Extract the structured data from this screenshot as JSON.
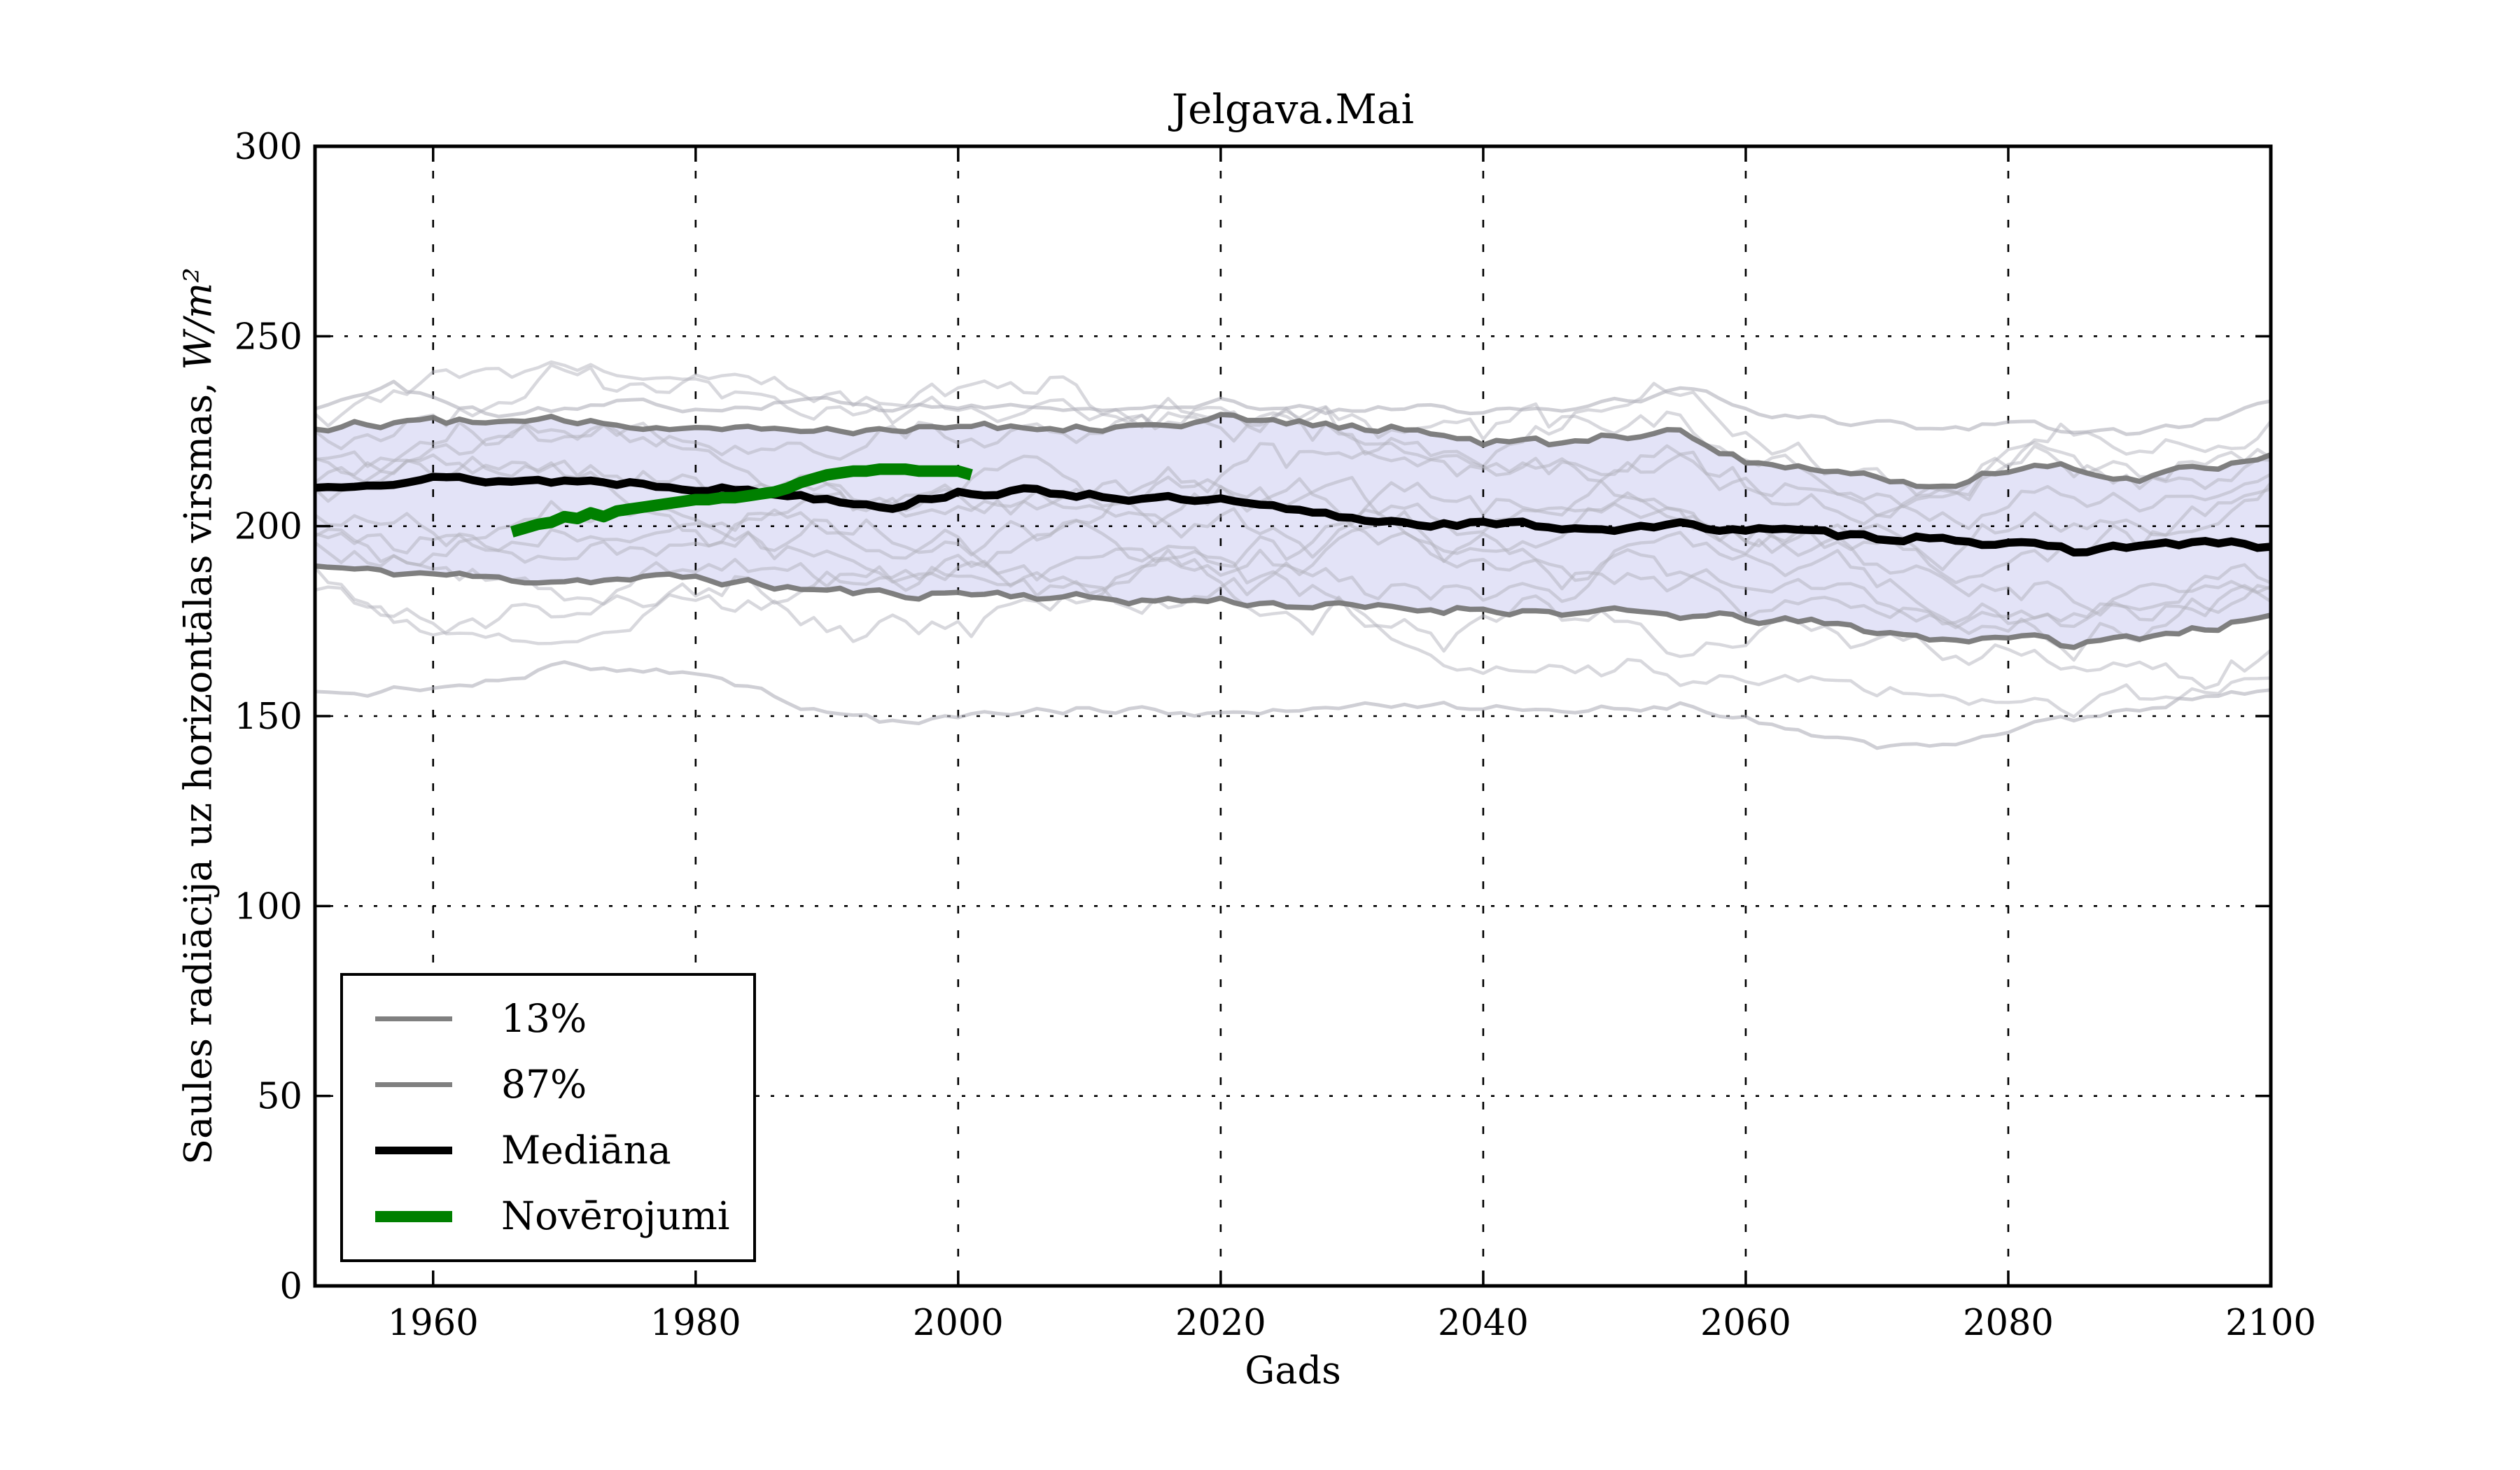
{
  "chart_data": {
    "type": "line",
    "title": "Jelgava.Mai",
    "xlabel": "Gads",
    "ylabel": "Saules radiācija uz horizontālas virsmas, W/m²",
    "ylabel_parts": {
      "prefix": "Saules radiācija uz horizontālas virsmas, ",
      "math": "W/m²"
    },
    "xlim": [
      1951,
      2100
    ],
    "ylim": [
      0,
      300
    ],
    "xticks": [
      1960,
      1980,
      2000,
      2020,
      2040,
      2060,
      2080,
      2100
    ],
    "yticks": [
      0,
      50,
      100,
      150,
      200,
      250,
      300
    ],
    "grid": "dotted",
    "legend": {
      "position": "lower left",
      "entries": [
        {
          "label": "13%",
          "color": "#808080",
          "line_width": 7
        },
        {
          "label": "87%",
          "color": "#808080",
          "line_width": 7
        },
        {
          "label": "Mediāna",
          "color": "#000000",
          "line_width": 11
        },
        {
          "label": "Novērojumi",
          "color": "#008000",
          "line_width": 16
        }
      ]
    },
    "colors": {
      "band_fill": "#e3e3f7",
      "band_edge": "#787878",
      "ensemble": "#b2b2bc",
      "median": "#000000",
      "observations": "#008000",
      "grid": "#000000",
      "frame": "#000000"
    },
    "series": {
      "p13": {
        "name": "13%",
        "points": [
          [
            1951,
            189.5
          ],
          [
            1955,
            188
          ],
          [
            1960,
            187.5
          ],
          [
            1965,
            186
          ],
          [
            1970,
            186
          ],
          [
            1975,
            186
          ],
          [
            1980,
            186.5
          ],
          [
            1985,
            184.5
          ],
          [
            1990,
            183
          ],
          [
            1995,
            182
          ],
          [
            2000,
            182.5
          ],
          [
            2005,
            182
          ],
          [
            2010,
            181
          ],
          [
            2015,
            180.5
          ],
          [
            2020,
            180.5
          ],
          [
            2025,
            179.5
          ],
          [
            2030,
            178.5
          ],
          [
            2035,
            178
          ],
          [
            2040,
            178.5
          ],
          [
            2045,
            177.5
          ],
          [
            2050,
            177
          ],
          [
            2055,
            176.5
          ],
          [
            2060,
            175.5
          ],
          [
            2065,
            174.5
          ],
          [
            2070,
            172.5
          ],
          [
            2075,
            170
          ],
          [
            2080,
            171.5
          ],
          [
            2085,
            168.5
          ],
          [
            2090,
            171
          ],
          [
            2095,
            173.5
          ],
          [
            2100,
            175.5
          ]
        ]
      },
      "p87": {
        "name": "87%",
        "points": [
          [
            1951,
            226
          ],
          [
            1955,
            227
          ],
          [
            1960,
            228
          ],
          [
            1965,
            227
          ],
          [
            1970,
            227.5
          ],
          [
            1975,
            226.5
          ],
          [
            1980,
            227
          ],
          [
            1985,
            226
          ],
          [
            1990,
            225.5
          ],
          [
            1995,
            226
          ],
          [
            2000,
            227
          ],
          [
            2005,
            226
          ],
          [
            2010,
            226.5
          ],
          [
            2015,
            227
          ],
          [
            2020,
            228.5
          ],
          [
            2025,
            227
          ],
          [
            2030,
            226
          ],
          [
            2035,
            225.5
          ],
          [
            2040,
            222
          ],
          [
            2045,
            221.5
          ],
          [
            2050,
            224
          ],
          [
            2055,
            225
          ],
          [
            2060,
            217.5
          ],
          [
            2065,
            215.5
          ],
          [
            2070,
            213
          ],
          [
            2075,
            210.5
          ],
          [
            2080,
            215
          ],
          [
            2085,
            215.5
          ],
          [
            2090,
            213
          ],
          [
            2095,
            216
          ],
          [
            2100,
            218.5
          ]
        ]
      },
      "median": {
        "name": "Mediāna",
        "points": [
          [
            1951,
            210
          ],
          [
            1955,
            212
          ],
          [
            1960,
            212.5
          ],
          [
            1965,
            212
          ],
          [
            1970,
            212
          ],
          [
            1975,
            211.5
          ],
          [
            1980,
            210.5
          ],
          [
            1985,
            209
          ],
          [
            1990,
            207.5
          ],
          [
            1995,
            205.5
          ],
          [
            2000,
            209
          ],
          [
            2005,
            209
          ],
          [
            2010,
            208.5
          ],
          [
            2015,
            207
          ],
          [
            2020,
            206.5
          ],
          [
            2025,
            204
          ],
          [
            2030,
            202
          ],
          [
            2035,
            201
          ],
          [
            2040,
            200.5
          ],
          [
            2045,
            200
          ],
          [
            2050,
            199.5
          ],
          [
            2055,
            200
          ],
          [
            2060,
            199.5
          ],
          [
            2065,
            198
          ],
          [
            2070,
            197
          ],
          [
            2075,
            197.5
          ],
          [
            2080,
            195
          ],
          [
            2085,
            193.5
          ],
          [
            2090,
            195
          ],
          [
            2095,
            195.5
          ],
          [
            2100,
            194.5
          ]
        ]
      },
      "observations": {
        "name": "Novērojumi",
        "points": [
          [
            1966,
            198.5
          ],
          [
            1967,
            199.5
          ],
          [
            1968,
            200.5
          ],
          [
            1969,
            201
          ],
          [
            1970,
            202.5
          ],
          [
            1971,
            202
          ],
          [
            1972,
            203.5
          ],
          [
            1973,
            202.5
          ],
          [
            1974,
            204
          ],
          [
            1975,
            204.5
          ],
          [
            1976,
            205
          ],
          [
            1977,
            205.5
          ],
          [
            1978,
            206
          ],
          [
            1979,
            206.5
          ],
          [
            1980,
            207
          ],
          [
            1981,
            207
          ],
          [
            1982,
            207.5
          ],
          [
            1983,
            207.5
          ],
          [
            1984,
            208
          ],
          [
            1985,
            208.5
          ],
          [
            1986,
            209
          ],
          [
            1987,
            210
          ],
          [
            1988,
            211.5
          ],
          [
            1989,
            212.5
          ],
          [
            1990,
            213.5
          ],
          [
            1991,
            214
          ],
          [
            1992,
            214.5
          ],
          [
            1993,
            214.5
          ],
          [
            1994,
            215
          ],
          [
            1995,
            215
          ],
          [
            1996,
            215
          ],
          [
            1997,
            214.5
          ],
          [
            1998,
            214.5
          ],
          [
            1999,
            214.5
          ],
          [
            2000,
            214.5
          ],
          [
            2001,
            213.5
          ]
        ]
      },
      "ensemble_outer_high": {
        "name": "ensemble member (upper)",
        "points": [
          [
            1951,
            231
          ],
          [
            1954,
            234.5
          ],
          [
            1957,
            238
          ],
          [
            1960,
            233
          ],
          [
            1965,
            230
          ],
          [
            1970,
            231
          ],
          [
            1975,
            232.5
          ],
          [
            1980,
            231
          ],
          [
            1985,
            232
          ],
          [
            1990,
            233
          ],
          [
            1995,
            231
          ],
          [
            2000,
            232
          ],
          [
            2005,
            232.5
          ],
          [
            2010,
            230
          ],
          [
            2015,
            231
          ],
          [
            2020,
            232.5
          ],
          [
            2025,
            231
          ],
          [
            2030,
            230
          ],
          [
            2035,
            231
          ],
          [
            2040,
            230
          ],
          [
            2045,
            231
          ],
          [
            2050,
            233
          ],
          [
            2056,
            236
          ],
          [
            2060,
            230
          ],
          [
            2065,
            228
          ],
          [
            2070,
            227
          ],
          [
            2075,
            226
          ],
          [
            2080,
            227
          ],
          [
            2085,
            225
          ],
          [
            2090,
            224
          ],
          [
            2095,
            228
          ],
          [
            2100,
            232
          ]
        ]
      },
      "ensemble_outer_low": {
        "name": "ensemble member (lower)",
        "points": [
          [
            1951,
            157
          ],
          [
            1955,
            156
          ],
          [
            1960,
            158
          ],
          [
            1965,
            160
          ],
          [
            1970,
            163
          ],
          [
            1975,
            163
          ],
          [
            1980,
            161.5
          ],
          [
            1985,
            157
          ],
          [
            1990,
            150.5
          ],
          [
            1995,
            148.5
          ],
          [
            2000,
            150
          ],
          [
            2005,
            151
          ],
          [
            2010,
            152
          ],
          [
            2015,
            151
          ],
          [
            2020,
            150
          ],
          [
            2025,
            151
          ],
          [
            2030,
            152
          ],
          [
            2035,
            153
          ],
          [
            2040,
            152
          ],
          [
            2045,
            153
          ],
          [
            2050,
            152
          ],
          [
            2055,
            153
          ],
          [
            2060,
            149
          ],
          [
            2065,
            145
          ],
          [
            2070,
            141.5
          ],
          [
            2075,
            143
          ],
          [
            2080,
            146.5
          ],
          [
            2085,
            149
          ],
          [
            2090,
            152
          ],
          [
            2095,
            156
          ],
          [
            2100,
            157
          ]
        ]
      }
    },
    "ensemble": {
      "count": 12,
      "description": "thin gray model-run lines spanning the 13%–87% band"
    }
  }
}
